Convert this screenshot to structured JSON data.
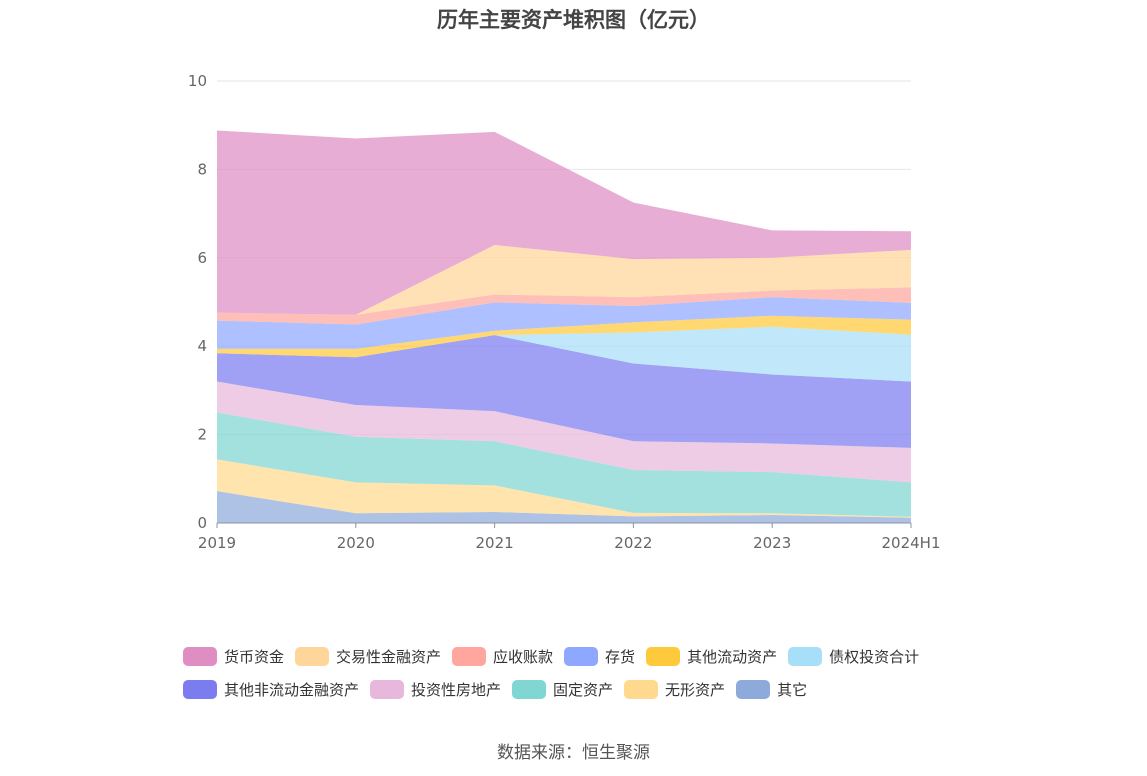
{
  "chart_data": {
    "type": "area",
    "stacked": true,
    "title": "历年主要资产堆积图（亿元）",
    "categories": [
      "2019",
      "2020",
      "2021",
      "2022",
      "2023",
      "2024H1"
    ],
    "y_ticks": [
      "0",
      "2",
      "4",
      "6",
      "8",
      "10"
    ],
    "ylim": [
      0,
      10
    ],
    "grid": true,
    "legend_position": "bottom",
    "series": [
      {
        "name": "其它",
        "color": "#8eaadb",
        "values": [
          0.72,
          0.22,
          0.25,
          0.15,
          0.18,
          0.12
        ]
      },
      {
        "name": "无形资产",
        "color": "#ffd98e",
        "values": [
          0.72,
          0.7,
          0.6,
          0.08,
          0.04,
          0.02
        ]
      },
      {
        "name": "固定资产",
        "color": "#7fd6d2",
        "values": [
          1.06,
          1.03,
          1.0,
          0.97,
          0.93,
          0.78
        ]
      },
      {
        "name": "投资性房地产",
        "color": "#e8b8dc",
        "values": [
          0.7,
          0.72,
          0.68,
          0.65,
          0.65,
          0.78
        ]
      },
      {
        "name": "其他非流动金融资产",
        "color": "#7b7cf0",
        "values": [
          0.64,
          1.08,
          1.72,
          1.76,
          1.56,
          1.5
        ]
      },
      {
        "name": "债权投资合计",
        "color": "#a8dff8",
        "values": [
          0.0,
          0.0,
          0.0,
          0.7,
          1.08,
          1.06
        ]
      },
      {
        "name": "其他流动资产",
        "color": "#ffc93c",
        "values": [
          0.1,
          0.19,
          0.1,
          0.23,
          0.25,
          0.34
        ]
      },
      {
        "name": "存货",
        "color": "#8fa8ff",
        "values": [
          0.64,
          0.55,
          0.64,
          0.37,
          0.42,
          0.38
        ]
      },
      {
        "name": "应收账款",
        "color": "#ffa69e",
        "values": [
          0.18,
          0.22,
          0.18,
          0.2,
          0.15,
          0.35
        ]
      },
      {
        "name": "交易性金融资产",
        "color": "#ffd699",
        "values": [
          0.0,
          0.0,
          1.12,
          0.86,
          0.74,
          0.85
        ]
      },
      {
        "name": "货币资金",
        "color": "#df8ec4",
        "values": [
          4.12,
          3.99,
          2.56,
          1.28,
          0.62,
          0.42
        ]
      }
    ]
  },
  "legend": {
    "rows": [
      [
        {
          "label": "货币资金",
          "color": "#df8ec4"
        },
        {
          "label": "交易性金融资产",
          "color": "#ffd699"
        },
        {
          "label": "应收账款",
          "color": "#ffa69e"
        },
        {
          "label": "存货",
          "color": "#8fa8ff"
        },
        {
          "label": "其他流动资产",
          "color": "#ffc93c"
        },
        {
          "label": "债权投资合计",
          "color": "#a8dff8"
        }
      ],
      [
        {
          "label": "其他非流动金融资产",
          "color": "#7b7cf0"
        },
        {
          "label": "投资性房地产",
          "color": "#e8b8dc"
        },
        {
          "label": "固定资产",
          "color": "#7fd6d2"
        },
        {
          "label": "无形资产",
          "color": "#ffd98e"
        },
        {
          "label": "其它",
          "color": "#8eaadb"
        }
      ]
    ]
  },
  "footer": {
    "source": "数据来源：恒生聚源"
  }
}
